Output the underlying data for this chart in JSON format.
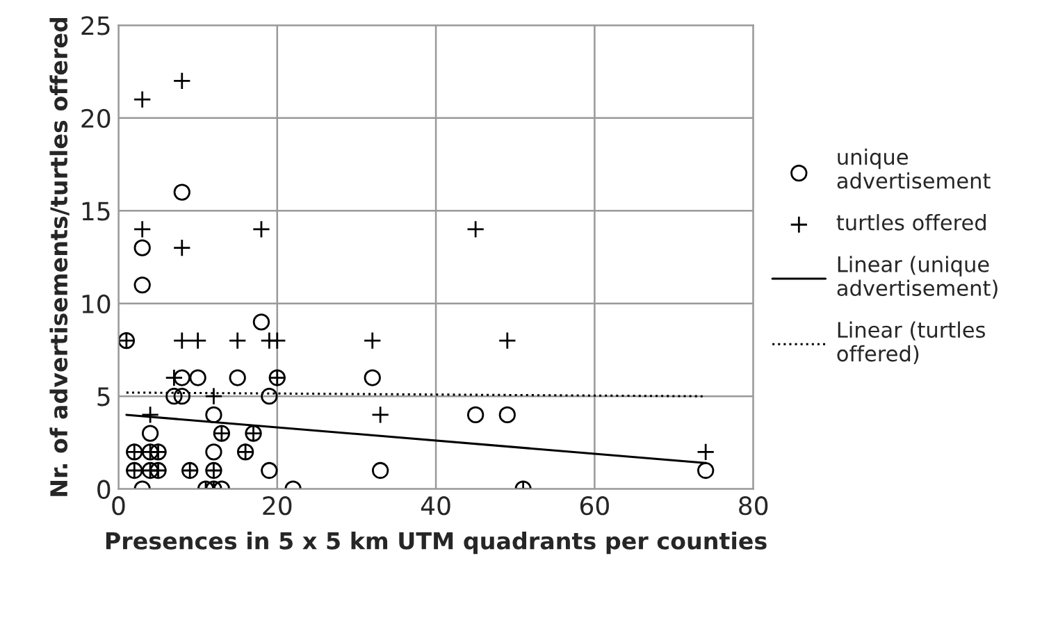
{
  "chart_data": {
    "type": "scatter",
    "xlabel": "Presences in 5 x 5 km UTM quadrants per counties",
    "ylabel": "Nr. of advertisements/turtles offered",
    "xlim": [
      0,
      80
    ],
    "xticks": [
      0,
      20,
      40,
      60,
      80
    ],
    "ylim": [
      0,
      25
    ],
    "yticks": [
      0,
      5,
      10,
      15,
      20,
      25
    ],
    "grid": true,
    "legend": "right",
    "series": [
      {
        "name": "unique advertisement",
        "marker": "circle",
        "color": "#000000",
        "x": [
          1,
          3,
          3,
          8,
          18,
          8,
          10,
          15,
          20,
          7,
          8,
          19,
          12,
          4,
          13,
          17,
          2,
          4,
          5,
          12,
          16,
          2,
          4,
          5,
          9,
          12,
          19,
          3,
          11,
          12,
          13,
          22,
          51,
          32,
          45,
          49,
          33,
          74
        ],
        "values": [
          8,
          13,
          11,
          16,
          9,
          6,
          6,
          6,
          6,
          5,
          5,
          5,
          4,
          3,
          3,
          3,
          2,
          2,
          2,
          2,
          2,
          1,
          1,
          1,
          1,
          1,
          1,
          0,
          0,
          0,
          0,
          0,
          0,
          6,
          4,
          4,
          1,
          1
        ]
      },
      {
        "name": "turtles offered",
        "marker": "cross",
        "color": "#000000",
        "x": [
          3,
          8,
          3,
          8,
          18,
          1,
          8,
          10,
          15,
          19,
          20,
          7,
          20,
          12,
          4,
          13,
          17,
          2,
          4,
          5,
          16,
          2,
          4,
          5,
          9,
          12,
          11,
          12,
          51,
          32,
          33,
          45,
          49,
          74
        ],
        "values": [
          21,
          22,
          14,
          13,
          14,
          8,
          8,
          8,
          8,
          8,
          8,
          6,
          6,
          5,
          4,
          3,
          3,
          2,
          2,
          2,
          2,
          1,
          1,
          1,
          1,
          1,
          0,
          0,
          0,
          8,
          4,
          14,
          8,
          2
        ]
      },
      {
        "name": "Linear (unique advertisement)",
        "type": "line",
        "line_style": "solid",
        "color": "#000000",
        "x": [
          1,
          74
        ],
        "values": [
          4.0,
          1.4
        ]
      },
      {
        "name": "Linear (turtles offered)",
        "type": "line",
        "line_style": "dotted",
        "color": "#000000",
        "x": [
          1,
          74
        ],
        "values": [
          5.2,
          5.0
        ]
      }
    ]
  }
}
